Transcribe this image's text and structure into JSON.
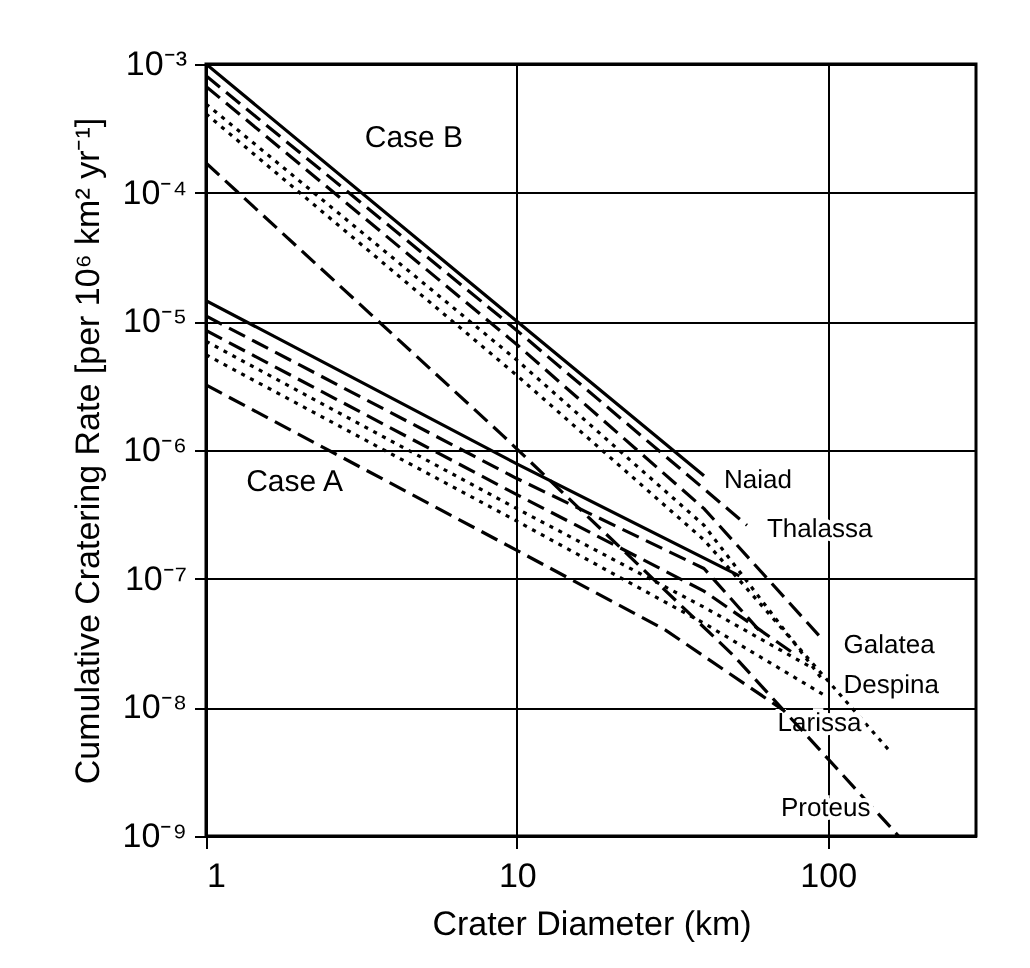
{
  "chart_data": {
    "type": "line",
    "xlabel": "Crater Diameter (km)",
    "ylabel": "Cumulative Cratering Rate  [per 10⁶ km² yr⁻¹]",
    "log": "xy",
    "grid": true,
    "xlim": [
      1,
      300
    ],
    "xticks": [
      1,
      10,
      100
    ],
    "ylim": [
      1e-09,
      0.001
    ],
    "yticks": [
      {
        "value": 1e-09,
        "label": "10⁻⁹"
      },
      {
        "value": 1e-08,
        "label": "10⁻⁸"
      },
      {
        "value": 1e-07,
        "label": "10⁻⁷"
      },
      {
        "value": 1e-06,
        "label": "10⁻⁶"
      },
      {
        "value": 1e-05,
        "label": "10⁻⁵"
      },
      {
        "value": 0.0001,
        "label": "10⁻⁴"
      },
      {
        "value": 0.001,
        "label": "10⁻³"
      }
    ],
    "annotations": [
      "Case B",
      "Case A"
    ],
    "series": [
      {
        "name": "Naiad",
        "color": "#000000",
        "line_style": "solid",
        "x": [
          1,
          10,
          40
        ],
        "values": [
          0.001,
          1e-05,
          6.3e-07
        ]
      },
      {
        "name": "Thalassa",
        "color": "#000000",
        "line_style": "dashed",
        "x": [
          1,
          10,
          55
        ],
        "values": [
          0.00081,
          8.5e-06,
          2.6e-07
        ]
      },
      {
        "name": "Galatea",
        "color": "#000000",
        "line_style": "dashed",
        "x": [
          1,
          10,
          40,
          97
        ],
        "values": [
          0.00067,
          6.6e-06,
          3.5e-07,
          3.3e-08
        ]
      },
      {
        "name": "Despina",
        "color": "#000000",
        "line_style": "dotted",
        "x": [
          1,
          10,
          40,
          97
        ],
        "values": [
          0.00049,
          5e-06,
          2.6e-07,
          1.6e-08
        ]
      },
      {
        "name": "Larissa",
        "color": "#000000",
        "line_style": "dotted",
        "x": [
          1,
          10,
          40,
          158
        ],
        "values": [
          0.00041,
          3.8e-06,
          2e-07,
          4.6e-09
        ]
      },
      {
        "name": "Proteus",
        "color": "#000000",
        "line_style": "dashed",
        "x": [
          1,
          9,
          50,
          169
        ],
        "values": [
          0.00017,
          1.3e-06,
          2.5e-08,
          1e-09
        ]
      },
      {
        "color": "#000000",
        "line_style": "solid",
        "x": [
          1,
          10,
          52
        ],
        "values": [
          1.45e-05,
          7.8e-07,
          1.05e-07
        ]
      },
      {
        "color": "#000000",
        "line_style": "dashed",
        "x": [
          1,
          10,
          40,
          60
        ],
        "values": [
          1.1e-05,
          6e-07,
          1.2e-07,
          4e-08
        ]
      },
      {
        "color": "#000000",
        "line_style": "dashed",
        "x": [
          1,
          10,
          40,
          80
        ],
        "values": [
          8.5e-06,
          4.5e-07,
          8e-08,
          2.5e-08
        ]
      },
      {
        "color": "#000000",
        "line_style": "dotted",
        "x": [
          1,
          10,
          40,
          90
        ],
        "values": [
          7e-06,
          3.5e-07,
          6e-08,
          2e-08
        ]
      },
      {
        "color": "#000000",
        "line_style": "dotted",
        "x": [
          1,
          10,
          40,
          100
        ],
        "values": [
          5.5e-06,
          2.8e-07,
          4.5e-08,
          1.2e-08
        ]
      },
      {
        "color": "#000000",
        "line_style": "dashed",
        "x": [
          1,
          10,
          30,
          72
        ],
        "values": [
          3.2e-06,
          1.66e-07,
          4e-08,
          9.5e-09
        ]
      }
    ]
  }
}
